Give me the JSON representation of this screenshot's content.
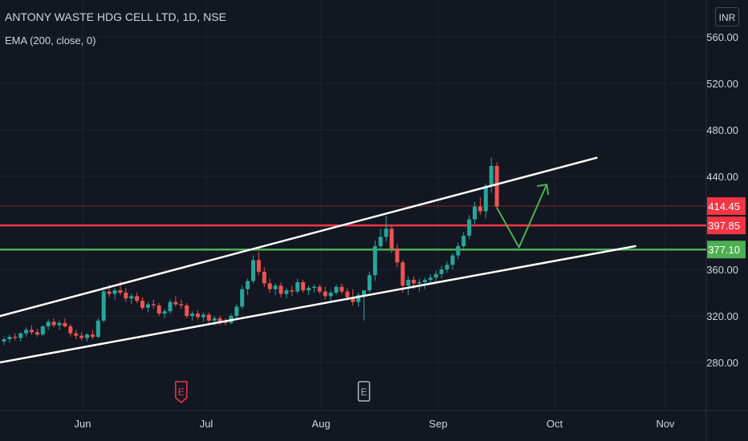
{
  "header": {
    "title": "ANTONY WASTE HDG CELL LTD, 1D, NSE",
    "indicator": "EMA (200, close, 0)",
    "currency": "INR"
  },
  "colors": {
    "background": "#131722",
    "grid": "#1f2330",
    "up": "#26a69a",
    "down": "#ef5350",
    "trendline": "#ffffff",
    "resistance": "#f23645",
    "support": "#4caf50",
    "projection": "#4caf50",
    "last_price_line": "#7f2a2a"
  },
  "chart_data": {
    "type": "candlestick",
    "title": "ANTONY WASTE HDG CELL LTD, 1D, NSE",
    "y_ticks": [
      "560.00",
      "520.00",
      "480.00",
      "440.00",
      "360.00",
      "320.00",
      "280.00"
    ],
    "x_ticks": [
      "Jun",
      "Jul",
      "Aug",
      "Sep",
      "Oct",
      "Nov"
    ],
    "ylim": [
      245,
      578
    ],
    "grid": true,
    "price_labels": [
      {
        "id": "last",
        "value": 414.45,
        "text": "414.45",
        "color": "#f23645"
      },
      {
        "id": "resistance",
        "value": 397.85,
        "text": "397.85",
        "color": "#f23645"
      },
      {
        "id": "support",
        "value": 377.1,
        "text": "377.10",
        "color": "#4caf50"
      }
    ],
    "horizontal_levels": [
      {
        "name": "resistance",
        "value": 397.85
      },
      {
        "name": "support",
        "value": 377.1
      },
      {
        "name": "last-price",
        "value": 414.45
      }
    ],
    "trendlines": [
      {
        "name": "upper-channel",
        "start": {
          "day": -3,
          "price": 317
        },
        "end": {
          "day": 107,
          "price": 456
        }
      },
      {
        "name": "lower-channel",
        "start": {
          "day": -3,
          "price": 278
        },
        "end": {
          "day": 114,
          "price": 380
        }
      }
    ],
    "projection": {
      "points": [
        {
          "day": 89,
          "price": 413
        },
        {
          "day": 93,
          "price": 379
        },
        {
          "day": 98,
          "price": 433
        }
      ]
    },
    "earnings_markers": [
      {
        "label": "E",
        "day": 32,
        "color": "#f23645"
      },
      {
        "label": "E",
        "day": 65,
        "color": "#b2b5be"
      }
    ],
    "candles_days": [
      0,
      1,
      2,
      3,
      4,
      5,
      6,
      7,
      8,
      9,
      10,
      11,
      12,
      13,
      14,
      15,
      16,
      17,
      18,
      19,
      20,
      21,
      22,
      23,
      24,
      25,
      26,
      27,
      28,
      29,
      30,
      31,
      32,
      33,
      34,
      35,
      36,
      37,
      38,
      39,
      40,
      41,
      42,
      43,
      44,
      45,
      46,
      47,
      48,
      49,
      50,
      51,
      52,
      53,
      54,
      55,
      56,
      57,
      58,
      59,
      60,
      61,
      62,
      63,
      64,
      65,
      66,
      67,
      68,
      69,
      70,
      71,
      72,
      73,
      74,
      75,
      76,
      77,
      78,
      79,
      80,
      81,
      82,
      83,
      84,
      85,
      86,
      87,
      88,
      89
    ],
    "candles": [
      [
        298,
        302,
        295,
        300
      ],
      [
        300,
        304,
        297,
        302
      ],
      [
        302,
        305,
        299,
        301
      ],
      [
        301,
        306,
        298,
        305
      ],
      [
        305,
        310,
        302,
        308
      ],
      [
        308,
        312,
        304,
        306
      ],
      [
        306,
        309,
        302,
        304
      ],
      [
        304,
        312,
        303,
        311
      ],
      [
        311,
        317,
        308,
        315
      ],
      [
        315,
        318,
        310,
        312
      ],
      [
        312,
        316,
        308,
        314
      ],
      [
        314,
        318,
        310,
        311
      ],
      [
        311,
        313,
        302,
        305
      ],
      [
        305,
        308,
        300,
        303
      ],
      [
        303,
        306,
        299,
        301
      ],
      [
        301,
        305,
        298,
        304
      ],
      [
        304,
        308,
        300,
        302
      ],
      [
        302,
        318,
        301,
        316
      ],
      [
        316,
        345,
        314,
        341
      ],
      [
        341,
        347,
        336,
        339
      ],
      [
        339,
        344,
        334,
        342
      ],
      [
        342,
        350,
        338,
        340
      ],
      [
        340,
        344,
        332,
        335
      ],
      [
        335,
        339,
        330,
        337
      ],
      [
        337,
        340,
        331,
        333
      ],
      [
        333,
        336,
        325,
        327
      ],
      [
        327,
        332,
        323,
        330
      ],
      [
        330,
        334,
        326,
        329
      ],
      [
        329,
        331,
        320,
        322
      ],
      [
        322,
        326,
        318,
        324
      ],
      [
        324,
        334,
        322,
        332
      ],
      [
        332,
        337,
        328,
        330
      ],
      [
        330,
        334,
        326,
        329
      ],
      [
        329,
        331,
        318,
        320
      ],
      [
        320,
        324,
        316,
        322
      ],
      [
        322,
        325,
        317,
        319
      ],
      [
        319,
        323,
        315,
        321
      ],
      [
        321,
        323,
        314,
        316
      ],
      [
        316,
        320,
        312,
        318
      ],
      [
        318,
        320,
        312,
        315
      ],
      [
        315,
        318,
        312,
        314
      ],
      [
        314,
        322,
        313,
        320
      ],
      [
        320,
        330,
        318,
        328
      ],
      [
        328,
        346,
        326,
        343
      ],
      [
        343,
        352,
        338,
        350
      ],
      [
        350,
        372,
        348,
        368
      ],
      [
        368,
        375,
        355,
        358
      ],
      [
        358,
        362,
        345,
        348
      ],
      [
        348,
        352,
        340,
        343
      ],
      [
        343,
        348,
        338,
        346
      ],
      [
        346,
        349,
        336,
        339
      ],
      [
        339,
        344,
        335,
        342
      ],
      [
        342,
        346,
        337,
        341
      ],
      [
        341,
        352,
        339,
        349
      ],
      [
        349,
        351,
        340,
        342
      ],
      [
        342,
        346,
        338,
        344
      ],
      [
        344,
        347,
        340,
        345
      ],
      [
        345,
        347,
        339,
        341
      ],
      [
        341,
        345,
        334,
        337
      ],
      [
        337,
        342,
        333,
        340
      ],
      [
        340,
        347,
        338,
        345
      ],
      [
        345,
        348,
        339,
        341
      ],
      [
        341,
        344,
        333,
        336
      ],
      [
        336,
        343,
        329,
        332
      ],
      [
        332,
        340,
        328,
        338
      ],
      [
        338,
        340,
        316,
        342
      ],
      [
        342,
        358,
        340,
        355
      ],
      [
        355,
        385,
        350,
        380
      ],
      [
        380,
        395,
        376,
        388
      ],
      [
        388,
        406,
        384,
        395
      ],
      [
        395,
        398,
        374,
        378
      ],
      [
        378,
        382,
        362,
        366
      ],
      [
        366,
        368,
        340,
        346
      ],
      [
        346,
        354,
        338,
        351
      ],
      [
        351,
        354,
        343,
        348
      ],
      [
        348,
        352,
        341,
        349
      ],
      [
        349,
        353,
        343,
        351
      ],
      [
        351,
        356,
        347,
        353
      ],
      [
        353,
        359,
        348,
        356
      ],
      [
        356,
        363,
        352,
        360
      ],
      [
        360,
        367,
        357,
        364
      ],
      [
        364,
        374,
        360,
        372
      ],
      [
        372,
        383,
        369,
        380
      ],
      [
        380,
        392,
        376,
        389
      ],
      [
        389,
        407,
        386,
        403
      ],
      [
        403,
        418,
        399,
        414
      ],
      [
        414,
        422,
        407,
        410
      ],
      [
        410,
        434,
        404,
        432
      ],
      [
        432,
        456,
        426,
        449
      ],
      [
        449,
        452,
        412,
        414
      ]
    ]
  },
  "plot_meta": {
    "day_to_x_origin": 0
  }
}
